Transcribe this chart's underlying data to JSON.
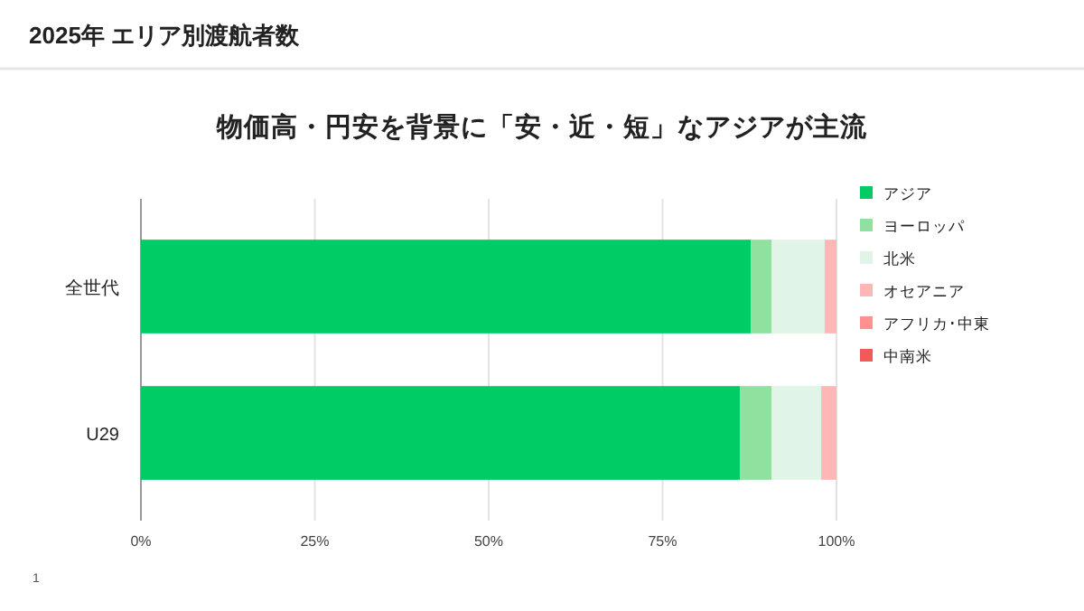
{
  "chart_data": {
    "type": "bar",
    "orientation": "horizontal",
    "stacked": true,
    "title": "2025年 エリア別渡航者数",
    "subtitle": "物価高・円安を背景に「安・近・短」なアジアが主流",
    "categories": [
      "全世代",
      "U29"
    ],
    "series": [
      {
        "name": "アジア",
        "color": "#00cc66",
        "values": [
          87.7,
          86.1
        ]
      },
      {
        "name": "ヨーロッパ",
        "color": "#90e0a0",
        "values": [
          3.0,
          4.6
        ]
      },
      {
        "name": "北米",
        "color": "#e0f5e8",
        "values": [
          7.6,
          7.1
        ]
      },
      {
        "name": "オセアニア",
        "color": "#ffb6b6",
        "values": [
          1.7,
          2.2
        ]
      },
      {
        "name": "アフリカ･中東",
        "color": "#ff9090",
        "values": [
          0,
          0
        ]
      },
      {
        "name": "中南米",
        "color": "#f25a5a",
        "values": [
          0,
          0
        ]
      }
    ],
    "xlim": [
      0,
      100
    ],
    "xticks": [
      {
        "value": 0,
        "label": "0%"
      },
      {
        "value": 25,
        "label": "25%"
      },
      {
        "value": 50,
        "label": "50%"
      },
      {
        "value": 75,
        "label": "75%"
      },
      {
        "value": 100,
        "label": "100%"
      }
    ],
    "grid": "x",
    "legend": "right",
    "annotations": [
      "1"
    ]
  }
}
